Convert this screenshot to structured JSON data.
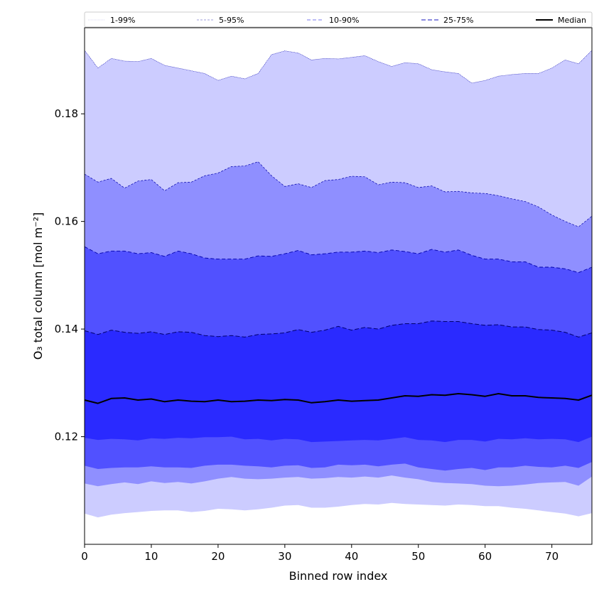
{
  "chart_data": {
    "type": "area",
    "xlabel": "Binned row index",
    "ylabel": "O₃ total column [mol m⁻²]",
    "xlim": [
      0,
      76
    ],
    "ylim": [
      0.1,
      0.196
    ],
    "xticks": [
      0,
      10,
      20,
      30,
      40,
      50,
      60,
      70
    ],
    "xtick_labels": [
      "0",
      "10",
      "20",
      "30",
      "40",
      "50",
      "60",
      "70"
    ],
    "yticks": [
      0.12,
      0.14,
      0.16,
      0.18
    ],
    "ytick_labels": [
      "0.12",
      "0.14",
      "0.16",
      "0.18"
    ],
    "grid": false,
    "legend_placement": "top",
    "x": [
      0,
      2,
      4,
      6,
      8,
      10,
      12,
      14,
      16,
      18,
      20,
      22,
      24,
      26,
      28,
      30,
      32,
      34,
      36,
      38,
      40,
      42,
      44,
      46,
      48,
      50,
      52,
      54,
      56,
      58,
      60,
      62,
      64,
      66,
      68,
      70,
      72,
      74,
      76
    ],
    "median": [
      0.1268,
      0.1262,
      0.1271,
      0.1272,
      0.1268,
      0.127,
      0.1265,
      0.1268,
      0.1266,
      0.1265,
      0.1268,
      0.1265,
      0.1266,
      0.1268,
      0.1267,
      0.1269,
      0.1268,
      0.1263,
      0.1265,
      0.1268,
      0.1266,
      0.1267,
      0.1268,
      0.1272,
      0.1276,
      0.1275,
      0.1278,
      0.1277,
      0.128,
      0.1278,
      0.1275,
      0.128,
      0.1276,
      0.1276,
      0.1273,
      0.1272,
      0.1271,
      0.1268,
      0.1277
    ],
    "bands": [
      {
        "name": "1-99%",
        "color": "#ccccff",
        "stroke": "#0000aa",
        "dash": "1,1",
        "lw": 0.6,
        "lower": [
          0.1057,
          0.105,
          0.1055,
          0.1058,
          0.106,
          0.1062,
          0.1063,
          0.1063,
          0.106,
          0.1062,
          0.1066,
          0.1065,
          0.1063,
          0.1065,
          0.1068,
          0.1072,
          0.1073,
          0.1068,
          0.1068,
          0.107,
          0.1073,
          0.1075,
          0.1074,
          0.1077,
          0.1075,
          0.1074,
          0.1073,
          0.1072,
          0.1074,
          0.1073,
          0.1071,
          0.1071,
          0.1068,
          0.1066,
          0.1063,
          0.106,
          0.1057,
          0.1052,
          0.1058
        ],
        "upper": [
          0.1918,
          0.1885,
          0.1903,
          0.1898,
          0.1897,
          0.1903,
          0.189,
          0.1885,
          0.188,
          0.1875,
          0.1862,
          0.187,
          0.1865,
          0.1875,
          0.191,
          0.1917,
          0.1913,
          0.19,
          0.1903,
          0.1902,
          0.1905,
          0.1908,
          0.1897,
          0.1888,
          0.1895,
          0.1893,
          0.1882,
          0.1878,
          0.1875,
          0.1857,
          0.1862,
          0.187,
          0.1873,
          0.1875,
          0.1875,
          0.1885,
          0.19,
          0.1893,
          0.1918
        ]
      },
      {
        "name": "5-95%",
        "color": "#8f8fff",
        "stroke": "#0000aa",
        "dash": "3,2",
        "lw": 0.7,
        "lower": [
          0.1113,
          0.1108,
          0.1112,
          0.1115,
          0.1112,
          0.1117,
          0.1114,
          0.1116,
          0.1113,
          0.1117,
          0.1122,
          0.1125,
          0.1122,
          0.1121,
          0.1122,
          0.1124,
          0.1125,
          0.1122,
          0.1123,
          0.1125,
          0.1124,
          0.1126,
          0.1124,
          0.1128,
          0.1124,
          0.1121,
          0.1116,
          0.1114,
          0.1113,
          0.1112,
          0.1109,
          0.1108,
          0.1109,
          0.1111,
          0.1114,
          0.1115,
          0.1116,
          0.1109,
          0.1126
        ],
        "upper": [
          0.1688,
          0.1673,
          0.168,
          0.1662,
          0.1675,
          0.1678,
          0.1657,
          0.1672,
          0.1673,
          0.1685,
          0.169,
          0.1702,
          0.1703,
          0.1711,
          0.1685,
          0.1665,
          0.167,
          0.1663,
          0.1676,
          0.1678,
          0.1684,
          0.1683,
          0.1668,
          0.1673,
          0.1672,
          0.1663,
          0.1666,
          0.1655,
          0.1656,
          0.1653,
          0.1652,
          0.1648,
          0.1642,
          0.1637,
          0.1627,
          0.1612,
          0.16,
          0.159,
          0.161
        ]
      },
      {
        "name": "10-90%",
        "color": "#5151ff",
        "stroke": "#0000aa",
        "dash": "5,3",
        "lw": 0.9,
        "lower": [
          0.1146,
          0.114,
          0.1142,
          0.1143,
          0.1143,
          0.1145,
          0.1143,
          0.1143,
          0.1142,
          0.1146,
          0.1148,
          0.1148,
          0.1146,
          0.1145,
          0.1143,
          0.1146,
          0.1147,
          0.1142,
          0.1143,
          0.1148,
          0.1147,
          0.1148,
          0.1145,
          0.1148,
          0.115,
          0.1143,
          0.114,
          0.1137,
          0.114,
          0.1142,
          0.1138,
          0.1143,
          0.1143,
          0.1146,
          0.1144,
          0.1143,
          0.1146,
          0.1142,
          0.1153
        ],
        "upper": [
          0.1553,
          0.154,
          0.1545,
          0.1545,
          0.154,
          0.1542,
          0.1535,
          0.1545,
          0.154,
          0.1532,
          0.153,
          0.153,
          0.153,
          0.1536,
          0.1535,
          0.154,
          0.1546,
          0.1538,
          0.154,
          0.1543,
          0.1543,
          0.1545,
          0.1542,
          0.1547,
          0.1544,
          0.154,
          0.1548,
          0.1543,
          0.1547,
          0.1537,
          0.153,
          0.153,
          0.1525,
          0.1525,
          0.1515,
          0.1515,
          0.1512,
          0.1505,
          0.1515
        ]
      },
      {
        "name": "25-75%",
        "color": "#2a2aff",
        "stroke": "#00006e",
        "dash": "6,3",
        "lw": 1.0,
        "lower": [
          0.1198,
          0.1194,
          0.1196,
          0.1195,
          0.1193,
          0.1197,
          0.1196,
          0.1198,
          0.1197,
          0.1199,
          0.1199,
          0.12,
          0.1195,
          0.1196,
          0.1193,
          0.1196,
          0.1195,
          0.119,
          0.1191,
          0.1192,
          0.1193,
          0.1194,
          0.1193,
          0.1196,
          0.1199,
          0.1194,
          0.1193,
          0.119,
          0.1194,
          0.1194,
          0.1191,
          0.1196,
          0.1195,
          0.1197,
          0.1195,
          0.1196,
          0.1195,
          0.119,
          0.12
        ],
        "upper": [
          0.1397,
          0.139,
          0.1398,
          0.1394,
          0.1392,
          0.1395,
          0.139,
          0.1395,
          0.1394,
          0.1388,
          0.1386,
          0.1388,
          0.1385,
          0.139,
          0.1391,
          0.1393,
          0.1399,
          0.1394,
          0.1398,
          0.1405,
          0.1398,
          0.1403,
          0.14,
          0.1407,
          0.141,
          0.141,
          0.1415,
          0.1414,
          0.1414,
          0.141,
          0.1407,
          0.1408,
          0.1404,
          0.1404,
          0.1399,
          0.1398,
          0.1394,
          0.1385,
          0.1393
        ]
      }
    ],
    "legend": [
      {
        "label": "1-99%",
        "color": "#b0b0e6",
        "dash": "1,1",
        "lw": 0.6
      },
      {
        "label": "5-95%",
        "color": "#8080d0",
        "dash": "3,2",
        "lw": 0.7
      },
      {
        "label": "10-90%",
        "color": "#7777ee",
        "dash": "5,3",
        "lw": 1.0
      },
      {
        "label": "25-75%",
        "color": "#4444cc",
        "dash": "6,3",
        "lw": 1.2
      },
      {
        "label": "Median",
        "color": "#000000",
        "dash": "",
        "lw": 2.0
      }
    ]
  }
}
